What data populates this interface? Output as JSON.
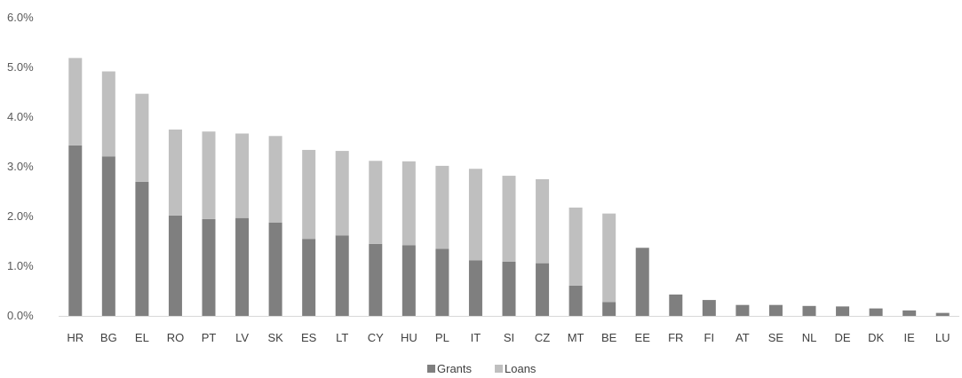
{
  "chart_data": {
    "type": "bar",
    "stacked": true,
    "categories": [
      "HR",
      "BG",
      "EL",
      "RO",
      "PT",
      "LV",
      "SK",
      "ES",
      "LT",
      "CY",
      "HU",
      "PL",
      "IT",
      "SI",
      "CZ",
      "MT",
      "BE",
      "EE",
      "FR",
      "FI",
      "AT",
      "SE",
      "NL",
      "DE",
      "DK",
      "IE",
      "LU"
    ],
    "series": [
      {
        "name": "Grants",
        "color": "#7f7f7f",
        "values": [
          3.43,
          3.21,
          2.7,
          2.02,
          1.95,
          1.97,
          1.88,
          1.55,
          1.62,
          1.45,
          1.42,
          1.35,
          1.12,
          1.09,
          1.06,
          0.61,
          0.28,
          1.37,
          0.43,
          0.32,
          0.22,
          0.22,
          0.2,
          0.19,
          0.15,
          0.11,
          0.06
        ]
      },
      {
        "name": "Loans",
        "color": "#bfbfbf",
        "values": [
          1.76,
          1.71,
          1.77,
          1.73,
          1.76,
          1.7,
          1.74,
          1.79,
          1.7,
          1.67,
          1.69,
          1.67,
          1.84,
          1.73,
          1.69,
          1.57,
          1.78,
          0,
          0,
          0,
          0,
          0,
          0,
          0,
          0,
          0,
          0
        ]
      }
    ],
    "yticks": [
      "0.0%",
      "1.0%",
      "2.0%",
      "3.0%",
      "4.0%",
      "5.0%",
      "6.0%"
    ],
    "ylim": [
      0,
      6
    ],
    "grid": false,
    "legend": "bottom-center",
    "title": "",
    "xlabel": "",
    "ylabel": ""
  }
}
